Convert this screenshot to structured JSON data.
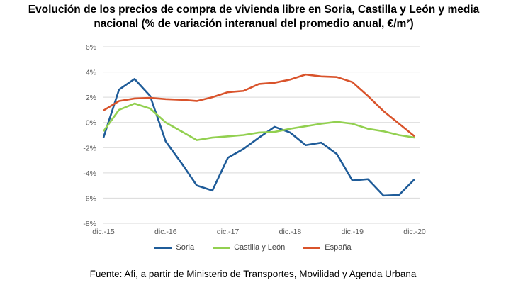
{
  "title": "Evolución de los precios de compra de vivienda libre en Soria, Castilla y León y media nacional (% de variación interanual del promedio anual, €/m²)",
  "source": "Fuente: Afi, a partir de Ministerio de Transportes, Movilidad y Agenda Urbana",
  "chart_data": {
    "type": "line",
    "title": "Evolución de los precios de compra de vivienda libre en Soria, Castilla y León y media nacional (% de variación interanual del promedio anual, €/m²)",
    "xlabel": "",
    "ylabel": "",
    "x_tick_labels": [
      "dic.-15",
      "dic.-16",
      "dic.-17",
      "dic.-18",
      "dic.-19",
      "dic.-20"
    ],
    "x_points_per_tick": 4,
    "ylim": [
      -8,
      6
    ],
    "y_ticks": [
      -8,
      -6,
      -4,
      -2,
      0,
      2,
      4,
      6
    ],
    "y_tick_labels": [
      "-8%",
      "-6%",
      "-4%",
      "-2%",
      "0%",
      "2%",
      "4%",
      "6%"
    ],
    "grid": true,
    "legend_position": "bottom",
    "series": [
      {
        "name": "Soria",
        "color": "#1F5C99",
        "values": [
          -1.2,
          2.6,
          3.45,
          2.1,
          -1.5,
          -3.2,
          -5.0,
          -5.4,
          -2.8,
          -2.1,
          -1.2,
          -0.35,
          -0.8,
          -1.8,
          -1.6,
          -2.5,
          -4.6,
          -4.5,
          -5.8,
          -5.75,
          -4.5
        ]
      },
      {
        "name": "Castilla y León",
        "color": "#92D050",
        "values": [
          -0.7,
          1.0,
          1.5,
          1.1,
          0.0,
          -0.7,
          -1.4,
          -1.2,
          -1.1,
          -1.0,
          -0.8,
          -0.75,
          -0.5,
          -0.3,
          -0.1,
          0.05,
          -0.1,
          -0.5,
          -0.7,
          -1.0,
          -1.2
        ]
      },
      {
        "name": "España",
        "color": "#D9532B",
        "values": [
          0.95,
          1.7,
          1.9,
          1.95,
          1.85,
          1.8,
          1.7,
          2.0,
          2.4,
          2.5,
          3.05,
          3.15,
          3.4,
          3.8,
          3.65,
          3.6,
          3.2,
          2.1,
          0.9,
          -0.1,
          -1.1
        ]
      }
    ]
  }
}
